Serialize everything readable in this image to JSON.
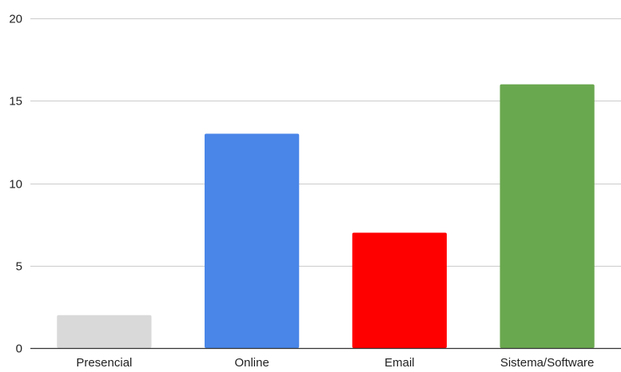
{
  "chart_data": {
    "type": "bar",
    "categories": [
      "Presencial",
      "Online",
      "Email",
      "Sistema/Software"
    ],
    "values": [
      2,
      13,
      7,
      16
    ],
    "colors": [
      "#d9d9d9",
      "#4a86e8",
      "#ff0000",
      "#6aa84f"
    ],
    "ylim": [
      0,
      20
    ],
    "yticks": [
      0,
      5,
      10,
      15,
      20
    ],
    "grid": true,
    "title": "",
    "xlabel": "",
    "ylabel": ""
  }
}
